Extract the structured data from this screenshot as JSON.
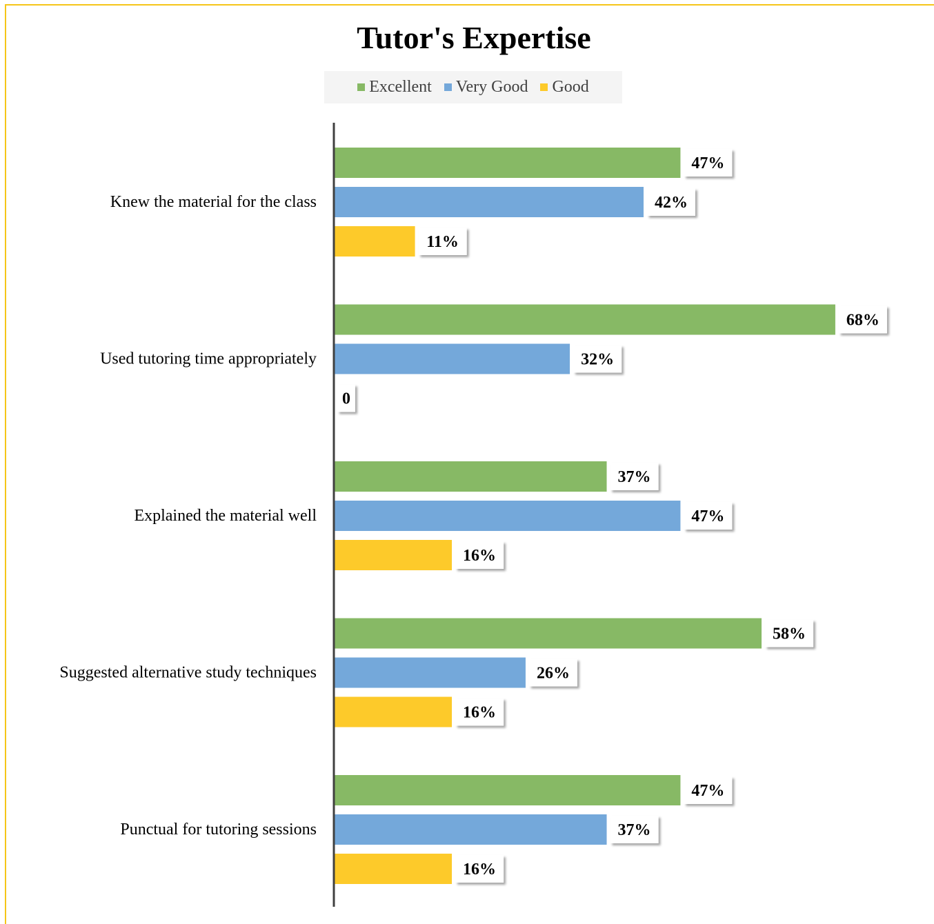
{
  "chart_data": {
    "type": "bar",
    "orientation": "horizontal",
    "title": "Tutor's Expertise",
    "legend_position": "top",
    "grid": false,
    "categories": [
      "Knew the material for the class",
      "Used tutoring time appropriately",
      "Explained the material well",
      "Suggested alternative study techniques",
      "Punctual for tutoring sessions"
    ],
    "series": [
      {
        "name": "Excellent",
        "color": "#87b965",
        "values": [
          47,
          68,
          37,
          58,
          47
        ],
        "labels": [
          "47%",
          "68%",
          "37%",
          "58%",
          "47%"
        ]
      },
      {
        "name": "Very Good",
        "color": "#74a8da",
        "values": [
          42,
          32,
          47,
          26,
          37
        ],
        "labels": [
          "42%",
          "32%",
          "47%",
          "26%",
          "37%"
        ]
      },
      {
        "name": "Good",
        "color": "#fdca2a",
        "values": [
          11,
          0,
          16,
          16,
          16
        ],
        "labels": [
          "11%",
          "0",
          "16%",
          "16%",
          "16%"
        ]
      }
    ],
    "xlim": [
      0,
      100
    ]
  },
  "colors": {
    "border": "#f5c518",
    "axis": "#404040"
  }
}
